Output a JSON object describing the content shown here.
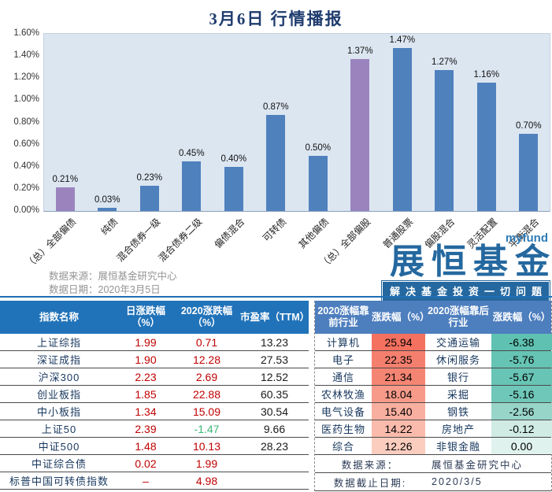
{
  "title": "3月6日  行情播报",
  "chart_data": {
    "type": "bar",
    "title": "3月6日 行情播报",
    "categories": [
      "（总）全部偏债",
      "纯债",
      "混合债券一级",
      "混合债券二级",
      "偏债混合",
      "可转债",
      "其他偏债",
      "（总）全部偏股",
      "普通股票",
      "偏股混合",
      "灵活配置",
      "平衡混合"
    ],
    "values": [
      0.21,
      0.03,
      0.23,
      0.45,
      0.4,
      0.87,
      0.5,
      1.37,
      1.47,
      1.27,
      1.16,
      0.7
    ],
    "data_labels": [
      "0.21%",
      "0.03%",
      "0.23%",
      "0.45%",
      "0.40%",
      "0.87%",
      "0.50%",
      "1.37%",
      "1.47%",
      "1.27%",
      "1.16%",
      "0.70%"
    ],
    "highlight_indices": [
      0,
      7
    ],
    "bar_color": "#4F81BD",
    "highlight_color": "#9B84BE",
    "plot_bg": "#DCE6F1",
    "ylim": [
      0,
      1.6
    ],
    "ytick_labels": [
      "0.00%",
      "0.20%",
      "0.40%",
      "0.60%",
      "0.80%",
      "1.00%",
      "1.20%",
      "1.40%",
      "1.60%"
    ],
    "grid": false,
    "legend": "none",
    "xlabel": "",
    "ylabel": ""
  },
  "chart_footer": {
    "source_label": "数据来源：",
    "source": "展恒基金研究中心",
    "date_label": "数据日期：",
    "date": "2020年3月5日"
  },
  "logo": {
    "brand_en": "myfund",
    "brand_cn": "展恒基金",
    "slogan": "解决基金投资一切问题",
    "color": "#25689F"
  },
  "index_table": {
    "headers": [
      "指数名称",
      "日涨跌幅（%）",
      "2020涨跌幅（%）",
      "市盈率（TTM）"
    ],
    "rows": [
      {
        "name": "上证综指",
        "daily": "1.99",
        "daily_color": "#C00000",
        "ytd": "0.71",
        "ytd_color": "#C00000",
        "pe": "13.23"
      },
      {
        "name": "深证成指",
        "daily": "1.90",
        "daily_color": "#C00000",
        "ytd": "12.28",
        "ytd_color": "#C00000",
        "pe": "27.53"
      },
      {
        "name": "沪深300",
        "daily": "2.23",
        "daily_color": "#C00000",
        "ytd": "2.69",
        "ytd_color": "#C00000",
        "pe": "12.52"
      },
      {
        "name": "创业板指",
        "daily": "1.85",
        "daily_color": "#C00000",
        "ytd": "22.88",
        "ytd_color": "#C00000",
        "pe": "60.35"
      },
      {
        "name": "中小板指",
        "daily": "1.34",
        "daily_color": "#C00000",
        "ytd": "15.09",
        "ytd_color": "#C00000",
        "pe": "30.54"
      },
      {
        "name": "上证50",
        "daily": "2.39",
        "daily_color": "#C00000",
        "ytd": "-1.47",
        "ytd_color": "#3CB878",
        "pe": "9.66"
      },
      {
        "name": "中证500",
        "daily": "1.48",
        "daily_color": "#C00000",
        "ytd": "10.13",
        "ytd_color": "#C00000",
        "pe": "28.23"
      },
      {
        "name": "中证综合债",
        "daily": "0.02",
        "daily_color": "#C00000",
        "ytd": "1.99",
        "ytd_color": "#C00000",
        "pe": ""
      },
      {
        "name": "标普中国可转债指数",
        "daily": "–",
        "daily_color": "#C00000",
        "ytd": "4.98",
        "ytd_color": "#C00000",
        "pe": ""
      }
    ]
  },
  "sector_table": {
    "headers": [
      "2020涨幅靠前行业",
      "涨跌幅（%）",
      "2020涨幅靠后行业",
      "涨跌幅（%）"
    ],
    "rows": [
      {
        "top_name": "计算机",
        "top_value": "25.94",
        "top_bg": "#F4705F",
        "bot_name": "交通运输",
        "bot_value": "-6.38",
        "bot_bg": "#5FC1B1"
      },
      {
        "top_name": "电子",
        "top_value": "22.35",
        "top_bg": "#F57F6E",
        "bot_name": "休闲服务",
        "bot_value": "-5.76",
        "bot_bg": "#66C4B4"
      },
      {
        "top_name": "通信",
        "top_value": "21.34",
        "top_bg": "#F58573",
        "bot_name": "银行",
        "bot_value": "-5.67",
        "bot_bg": "#68C4B5"
      },
      {
        "top_name": "农林牧渔",
        "top_value": "18.04",
        "top_bg": "#F79A89",
        "bot_name": "采掘",
        "bot_value": "-5.16",
        "bot_bg": "#6FC7B9"
      },
      {
        "top_name": "电气设备",
        "top_value": "15.40",
        "top_bg": "#F9AF9F",
        "bot_name": "钢铁",
        "bot_value": "-2.56",
        "bot_bg": "#98D5C9"
      },
      {
        "top_name": "医药生物",
        "top_value": "14.22",
        "top_bg": "#FABBAC",
        "bot_name": "房地产",
        "bot_value": "-0.12",
        "bot_bg": "#CFEBE4"
      },
      {
        "top_name": "综合",
        "top_value": "12.26",
        "top_bg": "#FBCDBF",
        "bot_name": "非银金融",
        "bot_value": "0.00",
        "bot_bg": "#E0F2ED"
      }
    ],
    "footer": [
      {
        "label": "数据来源：",
        "value": "展恒基金研究中心"
      },
      {
        "label": "数据截止日期:",
        "value": "2020/3/5"
      }
    ]
  },
  "colors": {
    "title_text": "#1F3C6E",
    "left_header_bg": "#2173B9",
    "right_header_bg": "#4D7EBE",
    "positive_red": "#C00000",
    "negative_green": "#3CB878",
    "row_line": "#4A4A4A",
    "name_text": "#17375E",
    "source_text": "#949494",
    "divider_blue": "#1F6FB5"
  }
}
